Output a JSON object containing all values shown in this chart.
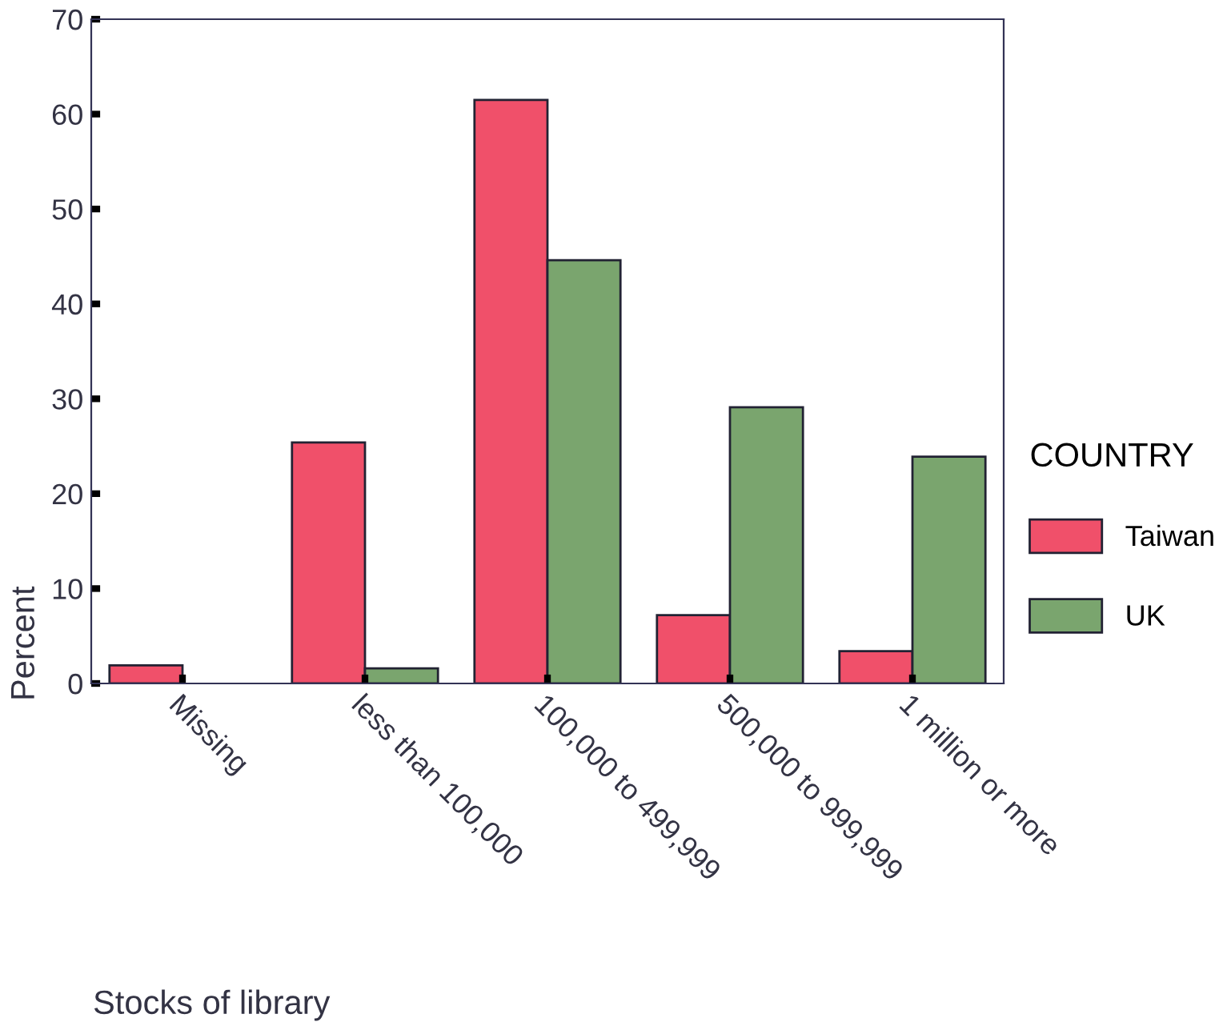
{
  "chart_data": {
    "type": "bar",
    "xlabel": "Stocks of library",
    "ylabel": "Percent",
    "legend_title": "COUNTRY",
    "categories": [
      "Missing",
      "less than 100,000",
      "100,000 to 499,999",
      "500,000 to 999,999",
      "1 million or more"
    ],
    "series": [
      {
        "name": "Taiwan",
        "color": "#f0506a",
        "values": [
          1.9,
          25.4,
          61.5,
          7.2,
          3.4
        ]
      },
      {
        "name": "UK",
        "color": "#7aa56e",
        "values": [
          null,
          1.6,
          44.6,
          29.1,
          23.9
        ]
      }
    ],
    "ylim": [
      0,
      70
    ],
    "yticks": [
      0,
      10,
      20,
      30,
      40,
      50,
      60,
      70
    ],
    "grid": false,
    "legend": "right"
  }
}
